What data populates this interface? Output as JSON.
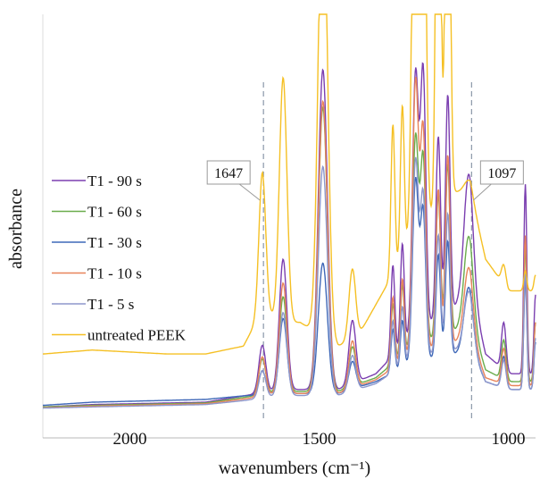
{
  "chart_data": {
    "type": "line",
    "xlabel": "wavenumbers (cm⁻¹)",
    "ylabel": "absorbance",
    "x_reversed": true,
    "xlim": [
      2230,
      928
    ],
    "ylim": [
      0,
      1
    ],
    "x_ticks": [
      {
        "value": 2000,
        "label": "2000"
      },
      {
        "value": 1500,
        "label": "1500"
      },
      {
        "value": 1000,
        "label": "1000"
      }
    ],
    "y_ticks_shown": false,
    "grid": false,
    "legend_position": "left",
    "reference_lines": [
      {
        "x": 1647,
        "label": "1647",
        "style": "dashed"
      },
      {
        "x": 1097,
        "label": "1097",
        "style": "dashed"
      }
    ],
    "peak_positions": [
      1650,
      1595,
      1490,
      1412,
      1305,
      1280,
      1245,
      1225,
      1185,
      1160,
      1105,
      1012,
      955,
      928
    ],
    "series": [
      {
        "name": "T1 - 90 s",
        "color": "#7b3fb0",
        "baseline": [
          [
            2230,
            0.006
          ],
          [
            2100,
            0.012
          ],
          [
            1800,
            0.018
          ],
          [
            1700,
            0.034
          ],
          [
            1600,
            0.05
          ],
          [
            1450,
            0.05
          ],
          [
            1350,
            0.09
          ],
          [
            1250,
            0.19
          ],
          [
            1140,
            0.26
          ],
          [
            1100,
            0.3
          ],
          [
            1060,
            0.14
          ],
          [
            1000,
            0.09
          ],
          [
            928,
            0.09
          ]
        ],
        "peak_heights": [
          0.12,
          0.33,
          0.81,
          0.16,
          0.23,
          0.26,
          0.66,
          0.64,
          0.46,
          0.55,
          0.3,
          0.12,
          0.48,
          0.2
        ]
      },
      {
        "name": "T1 - 60 s",
        "color": "#6aac4c",
        "baseline": [
          [
            2230,
            0.006
          ],
          [
            2100,
            0.01
          ],
          [
            1800,
            0.016
          ],
          [
            1700,
            0.03
          ],
          [
            1600,
            0.045
          ],
          [
            1450,
            0.045
          ],
          [
            1350,
            0.08
          ],
          [
            1250,
            0.16
          ],
          [
            1140,
            0.2
          ],
          [
            1100,
            0.22
          ],
          [
            1060,
            0.1
          ],
          [
            1000,
            0.07
          ],
          [
            928,
            0.07
          ]
        ],
        "peak_heights": [
          0.09,
          0.24,
          0.72,
          0.1,
          0.15,
          0.18,
          0.53,
          0.46,
          0.36,
          0.43,
          0.22,
          0.1,
          0.34,
          0.15
        ]
      },
      {
        "name": "T1 - 30 s",
        "color": "#3f68b8",
        "baseline": [
          [
            2230,
            0.01
          ],
          [
            2100,
            0.018
          ],
          [
            1800,
            0.025
          ],
          [
            1700,
            0.034
          ],
          [
            1600,
            0.04
          ],
          [
            1450,
            0.04
          ],
          [
            1350,
            0.07
          ],
          [
            1250,
            0.12
          ],
          [
            1140,
            0.14
          ],
          [
            1100,
            0.15
          ],
          [
            1060,
            0.07
          ],
          [
            1000,
            0.05
          ],
          [
            928,
            0.05
          ]
        ],
        "peak_heights": [
          0.06,
          0.19,
          0.33,
          0.07,
          0.11,
          0.12,
          0.46,
          0.37,
          0.26,
          0.29,
          0.16,
          0.08,
          0.28,
          0.12
        ]
      },
      {
        "name": "T1 - 10 s",
        "color": "#e8845a",
        "baseline": [
          [
            2230,
            0.004
          ],
          [
            2100,
            0.008
          ],
          [
            1800,
            0.014
          ],
          [
            1700,
            0.026
          ],
          [
            1600,
            0.04
          ],
          [
            1450,
            0.04
          ],
          [
            1350,
            0.075
          ],
          [
            1250,
            0.14
          ],
          [
            1140,
            0.17
          ],
          [
            1100,
            0.18
          ],
          [
            1060,
            0.08
          ],
          [
            1000,
            0.06
          ],
          [
            928,
            0.06
          ]
        ],
        "peak_heights": [
          0.1,
          0.28,
          0.74,
          0.12,
          0.18,
          0.21,
          0.69,
          0.55,
          0.4,
          0.48,
          0.18,
          0.09,
          0.38,
          0.16
        ]
      },
      {
        "name": "T1 - 5 s",
        "color": "#8d97cc",
        "baseline": [
          [
            2230,
            0.003
          ],
          [
            2100,
            0.006
          ],
          [
            1800,
            0.012
          ],
          [
            1700,
            0.022
          ],
          [
            1600,
            0.035
          ],
          [
            1450,
            0.035
          ],
          [
            1350,
            0.065
          ],
          [
            1250,
            0.13
          ],
          [
            1140,
            0.15
          ],
          [
            1100,
            0.16
          ],
          [
            1060,
            0.07
          ],
          [
            1000,
            0.05
          ],
          [
            928,
            0.05
          ]
        ],
        "peak_heights": [
          0.07,
          0.21,
          0.58,
          0.09,
          0.13,
          0.15,
          0.5,
          0.4,
          0.3,
          0.35,
          0.14,
          0.07,
          0.3,
          0.13
        ]
      },
      {
        "name": "untreated PEEK",
        "color": "#f5c024",
        "baseline": [
          [
            2230,
            0.14
          ],
          [
            2100,
            0.15
          ],
          [
            1900,
            0.14
          ],
          [
            1800,
            0.14
          ],
          [
            1700,
            0.16
          ],
          [
            1650,
            0.25
          ],
          [
            1600,
            0.22
          ],
          [
            1550,
            0.22
          ],
          [
            1450,
            0.16
          ],
          [
            1400,
            0.18
          ],
          [
            1300,
            0.35
          ],
          [
            1250,
            0.45
          ],
          [
            1140,
            0.55
          ],
          [
            1100,
            0.55
          ],
          [
            1060,
            0.38
          ],
          [
            1000,
            0.3
          ],
          [
            960,
            0.3
          ],
          [
            928,
            0.3
          ]
        ],
        "peak_heights": [
          0.35,
          0.62,
          1.2,
          0.18,
          0.38,
          0.38,
          1.4,
          1.2,
          1.4,
          1.4,
          0.03,
          0.05,
          0.05,
          0.04
        ],
        "clipped_top": true
      }
    ]
  }
}
